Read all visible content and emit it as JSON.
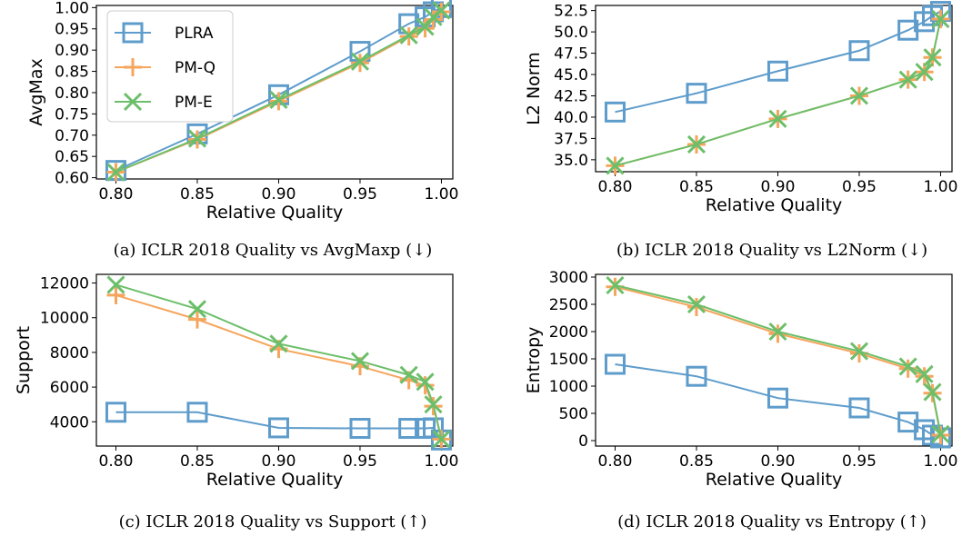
{
  "colors": {
    "PLRA": "#5e9ccb",
    "PM-Q": "#f5a55c",
    "PM-E": "#6cbf6a"
  },
  "chart_data": [
    {
      "id": "a",
      "type": "line",
      "caption": "(a) ICLR 2018 Quality vs AvgMaxp (↓)",
      "xlabel": "Relative Quality",
      "ylabel": "AvgMax",
      "xlim": [
        0.788,
        1.007
      ],
      "ylim": [
        0.597,
        1.005
      ],
      "xticks": [
        "0.80",
        "0.85",
        "0.90",
        "0.95",
        "1.00"
      ],
      "yticks": [
        "0.60",
        "0.65",
        "0.70",
        "0.75",
        "0.80",
        "0.85",
        "0.90",
        "0.95",
        "1.00"
      ],
      "legend": "top-left",
      "series": [
        {
          "name": "PLRA",
          "x": [
            0.8,
            0.85,
            0.9,
            0.95,
            0.98,
            0.99,
            0.995,
            1.0
          ],
          "y": [
            0.617,
            0.703,
            0.795,
            0.897,
            0.962,
            0.978,
            0.99,
            1.0
          ]
        },
        {
          "name": "PM-Q",
          "x": [
            0.8,
            0.85,
            0.9,
            0.95,
            0.98,
            0.99,
            0.995,
            1.0
          ],
          "y": [
            0.613,
            0.69,
            0.78,
            0.87,
            0.932,
            0.951,
            0.972,
            0.99
          ]
        },
        {
          "name": "PM-E",
          "x": [
            0.8,
            0.85,
            0.9,
            0.95,
            0.98,
            0.99,
            0.995,
            1.0
          ],
          "y": [
            0.613,
            0.692,
            0.783,
            0.873,
            0.935,
            0.955,
            0.978,
            0.993
          ]
        }
      ]
    },
    {
      "id": "b",
      "type": "line",
      "caption": "(b) ICLR 2018 Quality vs L2Norm (↓)",
      "xlabel": "Relative Quality",
      "ylabel": "L2 Norm",
      "xlim": [
        0.788,
        1.007
      ],
      "ylim": [
        33.6,
        53.1
      ],
      "xticks": [
        "0.80",
        "0.85",
        "0.90",
        "0.95",
        "1.00"
      ],
      "yticks": [
        "35.0",
        "37.5",
        "40.0",
        "42.5",
        "45.0",
        "47.5",
        "50.0",
        "52.5"
      ],
      "series": [
        {
          "name": "PLRA",
          "x": [
            0.8,
            0.85,
            0.9,
            0.95,
            0.98,
            0.99,
            0.995,
            1.0
          ],
          "y": [
            40.6,
            42.8,
            45.4,
            47.8,
            50.2,
            51.2,
            51.9,
            52.4
          ]
        },
        {
          "name": "PM-Q",
          "x": [
            0.8,
            0.85,
            0.9,
            0.95,
            0.98,
            0.99,
            0.995,
            1.0
          ],
          "y": [
            34.3,
            36.8,
            39.8,
            42.5,
            44.4,
            45.3,
            47.0,
            51.5
          ]
        },
        {
          "name": "PM-E",
          "x": [
            0.8,
            0.85,
            0.9,
            0.95,
            0.98,
            0.99,
            0.995,
            1.0
          ],
          "y": [
            34.3,
            36.8,
            39.8,
            42.5,
            44.4,
            45.3,
            47.0,
            51.5
          ]
        }
      ]
    },
    {
      "id": "c",
      "type": "line",
      "caption": "(c) ICLR 2018 Quality vs Support (↑)",
      "xlabel": "Relative Quality",
      "ylabel": "Support",
      "xlim": [
        0.788,
        1.007
      ],
      "ylim": [
        2600,
        12500
      ],
      "xticks": [
        "0.80",
        "0.85",
        "0.90",
        "0.95",
        "1.00"
      ],
      "yticks": [
        "4000",
        "6000",
        "8000",
        "10000",
        "12000"
      ],
      "series": [
        {
          "name": "PLRA",
          "x": [
            0.8,
            0.85,
            0.9,
            0.95,
            0.98,
            0.99,
            0.995,
            1.0
          ],
          "y": [
            4550,
            4550,
            3650,
            3620,
            3620,
            3620,
            3650,
            2950
          ]
        },
        {
          "name": "PM-Q",
          "x": [
            0.8,
            0.85,
            0.9,
            0.95,
            0.98,
            0.99,
            0.995,
            1.0
          ],
          "y": [
            11300,
            9900,
            8200,
            7200,
            6400,
            6100,
            4900,
            3000
          ]
        },
        {
          "name": "PM-E",
          "x": [
            0.8,
            0.85,
            0.9,
            0.95,
            0.98,
            0.99,
            0.995,
            1.0
          ],
          "y": [
            11900,
            10500,
            8500,
            7500,
            6700,
            6300,
            5000,
            3000
          ]
        }
      ]
    },
    {
      "id": "d",
      "type": "line",
      "caption": "(d) ICLR 2018 Quality vs Entropy (↑)",
      "xlabel": "Relative Quality",
      "ylabel": "Entropy",
      "xlim": [
        0.788,
        1.007
      ],
      "ylim": [
        -100,
        3050
      ],
      "xticks": [
        "0.80",
        "0.85",
        "0.90",
        "0.95",
        "1.00"
      ],
      "yticks": [
        "0",
        "500",
        "1000",
        "1500",
        "2000",
        "2500",
        "3000"
      ],
      "series": [
        {
          "name": "PLRA",
          "x": [
            0.8,
            0.85,
            0.9,
            0.95,
            0.98,
            0.99,
            0.995,
            1.0
          ],
          "y": [
            1400,
            1180,
            780,
            600,
            340,
            200,
            100,
            50
          ]
        },
        {
          "name": "PM-Q",
          "x": [
            0.8,
            0.85,
            0.9,
            0.95,
            0.98,
            0.99,
            0.995,
            1.0
          ],
          "y": [
            2820,
            2450,
            1960,
            1600,
            1320,
            1180,
            870,
            100
          ]
        },
        {
          "name": "PM-E",
          "x": [
            0.8,
            0.85,
            0.9,
            0.95,
            0.98,
            0.99,
            0.995,
            1.0
          ],
          "y": [
            2850,
            2500,
            2000,
            1640,
            1360,
            1220,
            890,
            120
          ]
        }
      ]
    }
  ]
}
